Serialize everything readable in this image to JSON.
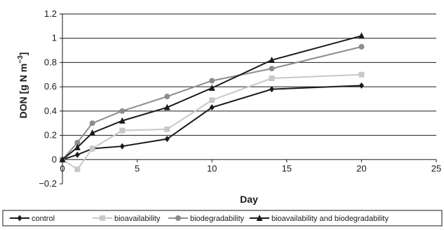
{
  "chart_data": {
    "type": "line",
    "xlabel": "Day",
    "ylabel": "DON [g N m",
    "ylabel_sup": "−3",
    "ylabel_close": "]",
    "xlim": [
      0,
      25
    ],
    "ylim": [
      -0.2,
      1.2
    ],
    "x_ticks": [
      "0",
      "5",
      "10",
      "15",
      "20",
      "25"
    ],
    "y_ticks": [
      "−0.2",
      "0",
      "0.2",
      "0.4",
      "0.6",
      "0.8",
      "1",
      "1.2"
    ],
    "grid": "horizontal",
    "legend_position": "bottom",
    "x": [
      0,
      1,
      2,
      4,
      7,
      10,
      14,
      20
    ],
    "series": [
      {
        "name": "control",
        "color": "#1a1a1a",
        "marker": "diamond",
        "values": [
          0,
          0.04,
          0.09,
          0.11,
          0.17,
          0.43,
          0.58,
          0.61
        ]
      },
      {
        "name": "bioavailability",
        "color": "#c8c8c8",
        "marker": "square",
        "values": [
          0,
          -0.08,
          0.09,
          0.24,
          0.25,
          0.49,
          0.67,
          0.7
        ]
      },
      {
        "name": "biodegradability",
        "color": "#8c8c8c",
        "marker": "circle",
        "values": [
          0,
          0.14,
          0.3,
          0.4,
          0.52,
          0.65,
          0.75,
          0.93
        ]
      },
      {
        "name": "bioavailability and biodegradability",
        "color": "#1a1a1a",
        "marker": "triangle",
        "values": [
          0,
          0.1,
          0.22,
          0.32,
          0.43,
          0.59,
          0.82,
          1.02
        ]
      }
    ]
  }
}
